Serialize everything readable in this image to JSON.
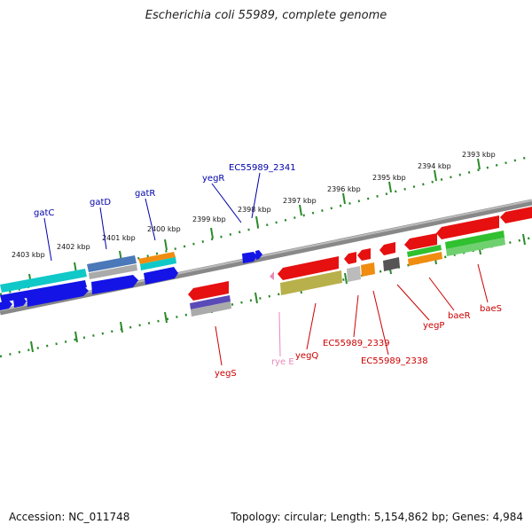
{
  "title": "Escherichia coli 55989, complete genome",
  "footer": {
    "accession": "Accession: NC_011748",
    "stats": "Topology: circular; Length: 5,154,862 bp; Genes: 4,984"
  },
  "ruler_labels": [
    "2393 kbp",
    "2394 kbp",
    "2395 kbp",
    "2396 kbp",
    "2397 kbp",
    "2398 kbp",
    "2399 kbp",
    "2400 kbp",
    "2401 kbp",
    "2402 kbp",
    "2403 kbp"
  ],
  "genes_top": [
    "gatC",
    "gatD",
    "gatR",
    "yegR",
    "EC55989_2341"
  ],
  "genes_bottom": [
    "yegS",
    "rye E",
    "yegQ",
    "EC55989_2339",
    "EC55989_2338",
    "yegP",
    "baeR",
    "baeS"
  ],
  "colors": {
    "backbone": "#777777",
    "ticks": "#2a8a2a",
    "forward_label": "#0000aa",
    "reverse_label": "#cc0000",
    "rna_label": "#e88ab8",
    "red_gene": "#e61010",
    "blue_gene": "#1414e6",
    "cyan_gene": "#10c8c8",
    "green_gene": "#30c030",
    "olive_gene": "#b8b04a",
    "orange_gene": "#f08c10"
  },
  "icons": [
    "gene-arrow-icon"
  ]
}
